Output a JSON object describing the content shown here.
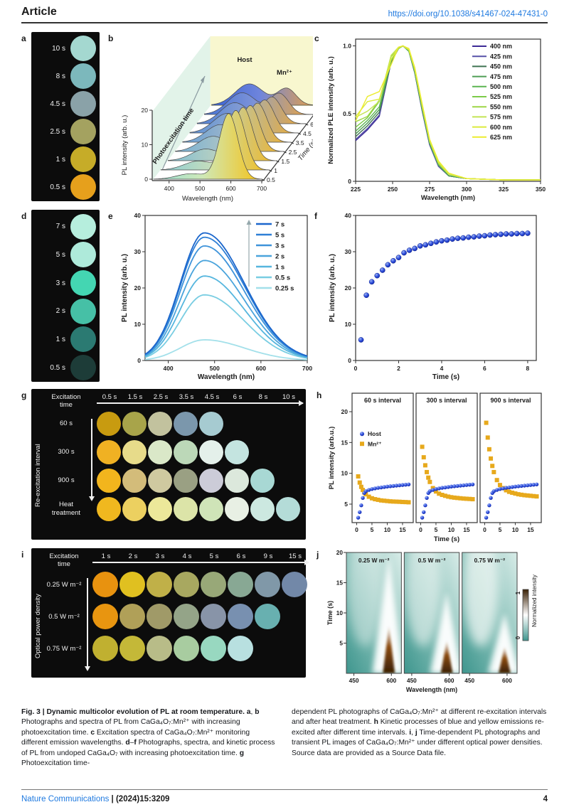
{
  "header": {
    "article_label": "Article",
    "doi": "https://doi.org/10.1038/s41467-024-47431-0"
  },
  "footer": {
    "journal": "Nature Communications",
    "cite": " | (2024)15:3209",
    "page_number": "4"
  },
  "colors": {
    "link_blue": "#1f7ae0",
    "marker_blue": "#2647d8",
    "marker_yellow": "#e7a91c",
    "photo_bg": "#0c0c0c"
  },
  "caption": {
    "left": [
      {
        "b": true,
        "t": "Fig. 3 | Dynamic multicolor evolution of PL at room temperature. "
      },
      {
        "b": true,
        "t": "a"
      },
      {
        "b": false,
        "t": ", "
      },
      {
        "b": true,
        "t": "b"
      },
      {
        "b": false,
        "t": " Photographs and spectra of PL from CaGa₄O₇:Mn²⁺ with increasing photoexcitation time. "
      },
      {
        "b": true,
        "t": "c"
      },
      {
        "b": false,
        "t": " Excitation spectra of CaGa₄O₇:Mn²⁺ monitoring different emission wavelengths. "
      },
      {
        "b": true,
        "t": "d"
      },
      {
        "b": false,
        "t": "–"
      },
      {
        "b": true,
        "t": "f"
      },
      {
        "b": false,
        "t": " Photographs, spectra, and kinetic process of PL from undoped CaGa₄O₇ with increasing photoexcitation time. "
      },
      {
        "b": true,
        "t": "g"
      },
      {
        "b": false,
        "t": " Photoexcitation time-"
      }
    ],
    "right": [
      {
        "b": false,
        "t": "dependent PL photographs of CaGa₄O₇:Mn²⁺ at different re-excitation intervals and after heat treatment. "
      },
      {
        "b": true,
        "t": "h"
      },
      {
        "b": false,
        "t": " Kinetic processes of blue and yellow emissions re-excited after different time intervals. "
      },
      {
        "b": true,
        "t": "i"
      },
      {
        "b": false,
        "t": ", "
      },
      {
        "b": true,
        "t": "j"
      },
      {
        "b": false,
        "t": " Time-dependent PL photographs and transient PL images of CaGa₄O₇:Mn²⁺ under different optical power densities. Source data are provided as a Source Data file."
      }
    ]
  },
  "panels": {
    "a": {
      "tag": "a",
      "photos": [
        {
          "label": "10 s",
          "color": "#a4d8d0"
        },
        {
          "label": "8 s",
          "color": "#7cb8bc"
        },
        {
          "label": "4.5 s",
          "color": "#8aa2a8"
        },
        {
          "label": "2.5 s",
          "color": "#a4a260"
        },
        {
          "label": "1 s",
          "color": "#c6ac28"
        },
        {
          "label": "0.5 s",
          "color": "#e6a01c"
        }
      ]
    },
    "b": {
      "tag": "b"
    },
    "c": {
      "tag": "c"
    },
    "d": {
      "tag": "d",
      "photos": [
        {
          "label": "7 s",
          "color": "#b6eedd"
        },
        {
          "label": "5 s",
          "color": "#aeeada"
        },
        {
          "label": "3 s",
          "color": "#44d6b2"
        },
        {
          "label": "2 s",
          "color": "#46c0a6"
        },
        {
          "label": "1 s",
          "color": "#2b7a72"
        },
        {
          "label": "0.5 s",
          "color": "#1d3c38"
        }
      ]
    },
    "e": {
      "tag": "e"
    },
    "f": {
      "tag": "f"
    },
    "g": {
      "tag": "g",
      "header_lines": [
        "Excitation",
        "time"
      ],
      "side_label": "Re-excitation interval",
      "columns": [
        "0.5 s",
        "1.5 s",
        "2.5 s",
        "3.5 s",
        "4.5 s",
        "6 s",
        "8 s",
        "10 s"
      ],
      "rows": [
        {
          "label": "60 s",
          "colors": [
            "#c89b10",
            "#a8a44a",
            "#c2c29e",
            "#7b97ac",
            "#a6cbd1"
          ]
        },
        {
          "label": "300 s",
          "colors": [
            "#f0b123",
            "#e7db8a",
            "#dae8c8",
            "#bcd8b8",
            "#e4f0ea",
            "#c4e4e0"
          ]
        },
        {
          "label": "900 s",
          "colors": [
            "#f2b51d",
            "#d3bc7a",
            "#cfc9a0",
            "#9aa083",
            "#ccccd8",
            "#dce8dc",
            "#a8d8d4"
          ]
        },
        {
          "label": "Heat treatment",
          "colors": [
            "#f0b81f",
            "#ecd060",
            "#ece89a",
            "#dce4a8",
            "#cfe4b8",
            "#e8f0e4",
            "#cce8e0",
            "#b4dcd8"
          ]
        }
      ]
    },
    "h": {
      "tag": "h"
    },
    "i": {
      "tag": "i",
      "header_lines": [
        "Excitation",
        "time"
      ],
      "side_label": "Optical power density",
      "columns": [
        "1 s",
        "2 s",
        "3 s",
        "4 s",
        "5 s",
        "6 s",
        "9 s",
        "15 s"
      ],
      "rows": [
        {
          "label": "0.25 W m⁻²",
          "colors": [
            "#e8920f",
            "#e0c020",
            "#c0b048",
            "#a8a860",
            "#98a878",
            "#88a894",
            "#8098a8",
            "#7288a8"
          ]
        },
        {
          "label": "0.5 W m⁻²",
          "colors": [
            "#e89510",
            "#b0a058",
            "#a09a68",
            "#94a488",
            "#8894a8",
            "#7890b0",
            "#68b0b0"
          ]
        },
        {
          "label": "0.75 W m⁻²",
          "colors": [
            "#c0b030",
            "#c4b838",
            "#b8bc88",
            "#a8cca0",
            "#98d8c0",
            "#b8e0e0"
          ]
        }
      ]
    },
    "j": {
      "tag": "j"
    }
  },
  "chart_data": [
    {
      "panel": "b",
      "type": "area",
      "projection": "3d-waterfall",
      "xlabel": "Wavelength (nm)",
      "ylabel": "PL intensity (arb. u.)",
      "zlabel": "Time (s)",
      "xlim": [
        350,
        700
      ],
      "ylim": [
        0,
        20
      ],
      "x_ticks": [
        400,
        500,
        600,
        700
      ],
      "y_ticks": [
        0,
        10,
        20
      ],
      "annotations": {
        "host": "Host",
        "mn": "Mn²⁺",
        "arrow": "Photoexcitation time"
      },
      "host_peak_nm": 472,
      "mn_peak_nm": 593,
      "series": [
        {
          "time": "0.5",
          "host": 1.6,
          "mn": 19.0
        },
        {
          "time": "1",
          "host": 2.6,
          "mn": 17.2
        },
        {
          "time": "1.5",
          "host": 3.4,
          "mn": 15.4
        },
        {
          "time": "2.5",
          "host": 4.4,
          "mn": 13.2
        },
        {
          "time": "3.5",
          "host": 5.1,
          "mn": 11.2
        },
        {
          "time": "4.5",
          "host": 5.7,
          "mn": 9.4
        },
        {
          "time": "6",
          "host": 6.1,
          "mn": 7.6
        },
        {
          "time": "8",
          "host": 6.3,
          "mn": 6.0
        },
        {
          "time": "10",
          "host": 6.2,
          "mn": 4.8
        }
      ]
    },
    {
      "panel": "c",
      "type": "line",
      "xlabel": "Wavelength (nm)",
      "ylabel": "Normalized PLE intensity (arb. u.)",
      "xlim": [
        225,
        350
      ],
      "ylim": [
        0,
        1.05
      ],
      "x_ticks": [
        225,
        250,
        275,
        300,
        325,
        350
      ],
      "y_ticks": [
        0,
        0.5,
        1.0
      ],
      "x": [
        225,
        233,
        241,
        249,
        254,
        257,
        261,
        265,
        270,
        275,
        281,
        288,
        300,
        325,
        350
      ],
      "series": [
        {
          "name": "400 nm",
          "color": "#3d2b96",
          "y": [
            0.3,
            0.38,
            0.48,
            0.88,
            0.98,
            1.0,
            0.96,
            0.8,
            0.52,
            0.27,
            0.11,
            0.04,
            0.02,
            0.01,
            0.01
          ]
        },
        {
          "name": "425 nm",
          "color": "#5651a8",
          "y": [
            0.31,
            0.39,
            0.49,
            0.88,
            0.98,
            1.0,
            0.96,
            0.8,
            0.52,
            0.27,
            0.11,
            0.04,
            0.02,
            0.01,
            0.01
          ]
        },
        {
          "name": "450 nm",
          "color": "#3f7352",
          "y": [
            0.33,
            0.41,
            0.51,
            0.88,
            0.98,
            1.0,
            0.96,
            0.8,
            0.53,
            0.28,
            0.12,
            0.04,
            0.02,
            0.01,
            0.01
          ]
        },
        {
          "name": "475 nm",
          "color": "#4f9e54",
          "y": [
            0.35,
            0.43,
            0.53,
            0.89,
            0.98,
            1.0,
            0.96,
            0.81,
            0.53,
            0.28,
            0.12,
            0.04,
            0.02,
            0.01,
            0.01
          ]
        },
        {
          "name": "500 nm",
          "color": "#5cb551",
          "y": [
            0.37,
            0.45,
            0.55,
            0.89,
            0.98,
            1.0,
            0.96,
            0.81,
            0.54,
            0.29,
            0.12,
            0.05,
            0.02,
            0.01,
            0.01
          ]
        },
        {
          "name": "525 nm",
          "color": "#7ccb49",
          "y": [
            0.4,
            0.48,
            0.58,
            0.89,
            0.98,
            1.0,
            0.97,
            0.82,
            0.55,
            0.29,
            0.13,
            0.05,
            0.02,
            0.01,
            0.01
          ]
        },
        {
          "name": "550 nm",
          "color": "#9ed647",
          "y": [
            0.42,
            0.5,
            0.6,
            0.9,
            0.98,
            1.0,
            0.97,
            0.82,
            0.55,
            0.3,
            0.13,
            0.05,
            0.02,
            0.01,
            0.01
          ]
        },
        {
          "name": "575 nm",
          "color": "#c3e455",
          "y": [
            0.44,
            0.52,
            0.62,
            0.9,
            0.99,
            1.0,
            0.97,
            0.83,
            0.56,
            0.3,
            0.14,
            0.05,
            0.02,
            0.01,
            0.01
          ]
        },
        {
          "name": "600 nm",
          "color": "#dcea3c",
          "y": [
            0.47,
            0.55,
            0.65,
            0.9,
            0.99,
            1.0,
            0.97,
            0.83,
            0.57,
            0.31,
            0.14,
            0.06,
            0.02,
            0.01,
            0.01
          ]
        },
        {
          "name": "625 nm",
          "color": "#ecec2f",
          "y": [
            0.49,
            0.57,
            0.67,
            0.91,
            0.99,
            1.0,
            0.98,
            0.84,
            0.57,
            0.31,
            0.15,
            0.06,
            0.02,
            0.01,
            0.01
          ]
        }
      ]
    },
    {
      "panel": "e",
      "type": "line",
      "xlabel": "Wavelength (nm)",
      "ylabel": "PL intensity (arb. u.)",
      "xlim": [
        350,
        700
      ],
      "ylim": [
        0,
        40
      ],
      "x_ticks": [
        400,
        500,
        600,
        700
      ],
      "y_ticks": [
        0,
        10,
        20,
        30,
        40
      ],
      "peak_nm": 478,
      "series": [
        {
          "name": "7 s",
          "color": "#1b66cc",
          "peak": 35.2
        },
        {
          "name": "5 s",
          "color": "#2e7fd6",
          "peak": 34.0
        },
        {
          "name": "3 s",
          "color": "#3e93da",
          "peak": 31.6
        },
        {
          "name": "2 s",
          "color": "#4aa4dc",
          "peak": 27.6
        },
        {
          "name": "1 s",
          "color": "#56b6de",
          "peak": 23.3
        },
        {
          "name": "0.5 s",
          "color": "#79cde2",
          "peak": 18.1
        },
        {
          "name": "0.25 s",
          "color": "#a3e0ea",
          "peak": 5.7
        }
      ]
    },
    {
      "panel": "f",
      "type": "scatter",
      "xlabel": "Time (s)",
      "ylabel": "PL intensity (arb. u.)",
      "xlim": [
        0,
        8.4
      ],
      "ylim": [
        0,
        40
      ],
      "x_ticks": [
        0,
        2,
        4,
        6,
        8
      ],
      "y_ticks": [
        0,
        10,
        20,
        30,
        40
      ],
      "color": "#2647d8",
      "x": [
        0.25,
        0.5,
        0.75,
        1,
        1.25,
        1.5,
        1.75,
        2,
        2.25,
        2.5,
        2.75,
        3,
        3.25,
        3.5,
        3.75,
        4,
        4.25,
        4.5,
        4.75,
        5,
        5.25,
        5.5,
        5.75,
        6,
        6.25,
        6.5,
        6.75,
        7,
        7.25,
        7.5,
        7.75,
        8
      ],
      "y": [
        5.7,
        18.0,
        21.7,
        23.4,
        24.9,
        26.4,
        27.5,
        28.4,
        29.7,
        30.4,
        30.9,
        31.6,
        31.9,
        32.3,
        32.7,
        33.0,
        33.2,
        33.5,
        33.7,
        33.8,
        34.0,
        34.1,
        34.3,
        34.4,
        34.6,
        34.7,
        34.8,
        34.9,
        34.9,
        35.0,
        35.0,
        35.1
      ]
    },
    {
      "panel": "h",
      "type": "scatter-multi",
      "xlabel": "Time (s)",
      "ylabel": "PL intensity (arb.u.)",
      "xlim": [
        -1.5,
        18.5
      ],
      "ylim": [
        2,
        23
      ],
      "x_ticks": [
        0,
        5,
        10,
        15
      ],
      "y_ticks": [
        5,
        10,
        15,
        20
      ],
      "legend": [
        {
          "name": "Host",
          "color": "#2647d8",
          "marker": "circle"
        },
        {
          "name": "Mn²⁺",
          "color": "#e7a91c",
          "marker": "square"
        }
      ],
      "t": [
        0.5,
        1,
        1.5,
        2,
        2.5,
        3,
        4,
        5,
        6,
        7,
        8,
        9,
        10,
        11,
        12,
        13,
        14,
        15,
        16,
        17
      ],
      "host": [
        2.8,
        3.7,
        4.8,
        6.0,
        6.8,
        7.1,
        7.3,
        7.45,
        7.55,
        7.65,
        7.7,
        7.78,
        7.85,
        7.9,
        7.95,
        8.0,
        8.05,
        8.1,
        8.15,
        8.2
      ],
      "subpanels": [
        {
          "title": "60 s interval",
          "mn": [
            9.5,
            8.5,
            7.8,
            7.3,
            6.9,
            6.6,
            6.2,
            5.95,
            5.8,
            5.7,
            5.6,
            5.55,
            5.5,
            5.45,
            5.42,
            5.4,
            5.38,
            5.35,
            5.33,
            5.3
          ]
        },
        {
          "title": "300 s interval",
          "mn": [
            14.3,
            12.6,
            11.3,
            10.2,
            9.3,
            8.6,
            7.6,
            7.05,
            6.7,
            6.5,
            6.35,
            6.22,
            6.12,
            6.05,
            6.0,
            5.95,
            5.9,
            5.87,
            5.84,
            5.8
          ]
        },
        {
          "title": "900 s interval",
          "mn": [
            18.2,
            15.8,
            13.9,
            12.4,
            11.2,
            10.2,
            8.9,
            8.1,
            7.6,
            7.25,
            7.0,
            6.85,
            6.72,
            6.6,
            6.52,
            6.45,
            6.4,
            6.35,
            6.3,
            6.25
          ]
        }
      ]
    },
    {
      "panel": "j",
      "type": "heatmap",
      "xlabel": "Wavelength (nm)",
      "ylabel": "Time (s)",
      "xlim": [
        420,
        640
      ],
      "ylim": [
        0,
        20
      ],
      "x_ticks": [
        450,
        600
      ],
      "y_ticks": [
        5,
        10,
        15,
        20
      ],
      "emission_nm": 590,
      "colorbar": {
        "label": "Normalized intensity",
        "ticks": [
          "0",
          "1"
        ],
        "low_color": "#3f968e",
        "mid_color": "#ffffff",
        "high_color": "#3a2004"
      },
      "subpanels": [
        {
          "title": "0.25 W m⁻²",
          "plume_top": 19.5,
          "brown_top": 8.0
        },
        {
          "title": "0.5 W m⁻²",
          "plume_top": 13.5,
          "brown_top": 5.5
        },
        {
          "title": "0.75 W m⁻²",
          "plume_top": 10.0,
          "brown_top": 4.5
        }
      ]
    }
  ]
}
